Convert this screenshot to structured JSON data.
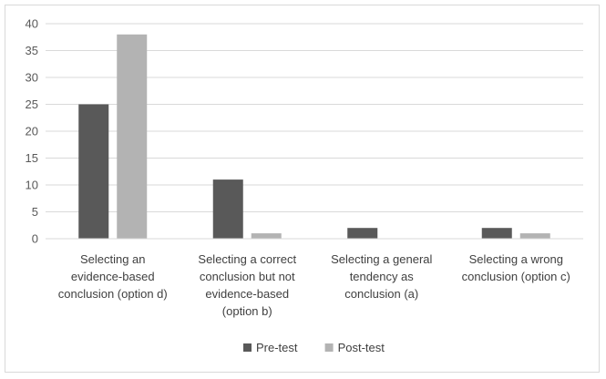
{
  "chart_data": {
    "type": "bar",
    "title": "",
    "xlabel": "",
    "ylabel": "",
    "ylim": [
      0,
      40
    ],
    "yticks": [
      0,
      5,
      10,
      15,
      20,
      25,
      30,
      35,
      40
    ],
    "grid": true,
    "legend_position": "bottom",
    "categories": [
      [
        "Selecting an",
        "evidence-based",
        "conclusion (option d)"
      ],
      [
        "Selecting a correct",
        "conclusion but not",
        "evidence-based",
        "(option b)"
      ],
      [
        "Selecting a general",
        "tendency as",
        "conclusion (a)"
      ],
      [
        "Selecting a wrong",
        "conclusion (option c)"
      ]
    ],
    "series": [
      {
        "name": "Pre-test",
        "color": "#595959",
        "values": [
          25,
          11,
          2,
          2
        ]
      },
      {
        "name": "Post-test",
        "color": "#b3b3b3",
        "values": [
          38,
          1,
          0,
          1
        ]
      }
    ]
  }
}
